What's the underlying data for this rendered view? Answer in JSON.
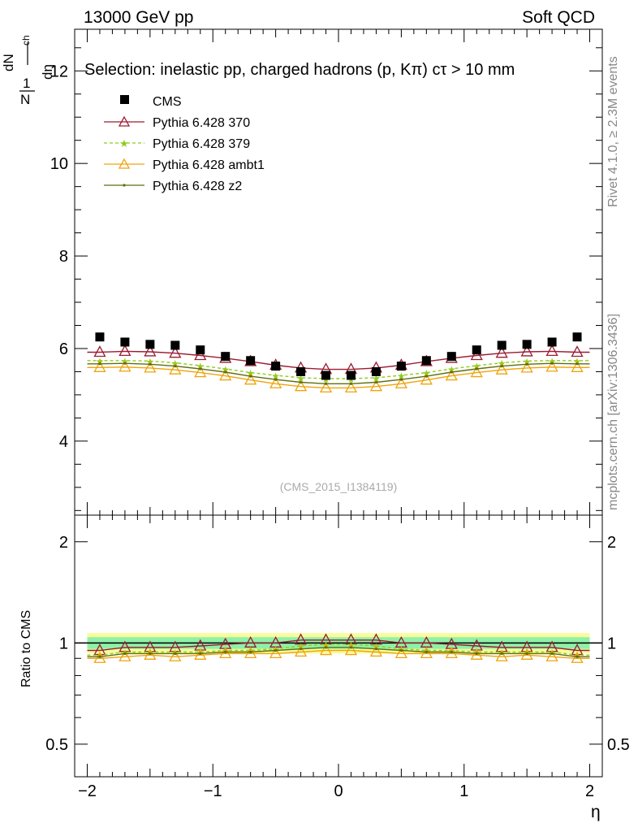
{
  "header": {
    "left_label": "13000 GeV pp",
    "right_label": "Soft QCD",
    "side_top": "Rivet 4.1.0, ≥ 2.3M events",
    "side_bottom": "mcplots.cern.ch [arXiv:1306.3436]"
  },
  "chart_data": [
    {
      "type": "scatter",
      "panel": "main",
      "title": "Selection: inelastic pp, charged hadrons (p, Kπ) cτ > 10 mm",
      "ylabel": "1/N dN_ch/dη",
      "ylabel_parts": {
        "one": "1",
        "N": "N",
        "dN": "dN",
        "ch": "ch",
        "deta": "dη"
      },
      "watermark": "(CMS_2015_I1384119)",
      "xlim": [
        -2.1,
        2.1
      ],
      "ylim": [
        2.4,
        12.9
      ],
      "yticks": [
        "4",
        "6",
        "8",
        "10",
        "12"
      ],
      "x": [
        -1.9,
        -1.7,
        -1.5,
        -1.3,
        -1.1,
        -0.9,
        -0.7,
        -0.5,
        -0.3,
        -0.1,
        0.1,
        0.3,
        0.5,
        0.7,
        0.9,
        1.1,
        1.3,
        1.5,
        1.7,
        1.9
      ],
      "series": [
        {
          "name": "CMS",
          "color": "#000000",
          "values": [
            6.25,
            6.14,
            6.09,
            6.07,
            5.97,
            5.83,
            5.74,
            5.62,
            5.5,
            5.42,
            5.42,
            5.5,
            5.62,
            5.74,
            5.83,
            5.97,
            6.07,
            6.09,
            6.14,
            6.25
          ]
        },
        {
          "name": "Pythia 6.428 370",
          "color": "#9b1b30",
          "values": [
            5.92,
            5.94,
            5.93,
            5.9,
            5.85,
            5.79,
            5.72,
            5.64,
            5.58,
            5.55,
            5.55,
            5.58,
            5.64,
            5.72,
            5.79,
            5.85,
            5.9,
            5.93,
            5.94,
            5.92
          ]
        },
        {
          "name": "Pythia 6.428 379",
          "color": "#8fcc1c",
          "values": [
            5.74,
            5.74,
            5.73,
            5.69,
            5.63,
            5.56,
            5.48,
            5.42,
            5.37,
            5.35,
            5.35,
            5.37,
            5.42,
            5.48,
            5.56,
            5.63,
            5.69,
            5.73,
            5.74,
            5.74
          ]
        },
        {
          "name": "Pythia 6.428 ambt1",
          "color": "#f0a30a",
          "values": [
            5.59,
            5.6,
            5.58,
            5.54,
            5.48,
            5.41,
            5.32,
            5.24,
            5.18,
            5.15,
            5.15,
            5.18,
            5.24,
            5.32,
            5.41,
            5.48,
            5.54,
            5.58,
            5.6,
            5.59
          ]
        },
        {
          "name": "Pythia 6.428 z2",
          "color": "#5f6e12",
          "values": [
            5.67,
            5.68,
            5.66,
            5.62,
            5.56,
            5.49,
            5.4,
            5.33,
            5.27,
            5.24,
            5.24,
            5.27,
            5.33,
            5.4,
            5.49,
            5.56,
            5.62,
            5.66,
            5.68,
            5.67
          ]
        }
      ]
    },
    {
      "type": "line",
      "panel": "ratio",
      "ylabel": "Ratio to CMS",
      "xlabel": "η",
      "xlim": [
        -2.1,
        2.1
      ],
      "ylim": [
        0.4,
        2.4
      ],
      "xticks": [
        "−2",
        "−1",
        "0",
        "1",
        "2"
      ],
      "yticks": [
        "0.5",
        "1",
        "2"
      ],
      "band_inner": 0.04,
      "band_outer": 0.07,
      "series": [
        {
          "name": "Pythia 6.428 370",
          "values": [
            0.95,
            0.97,
            0.97,
            0.97,
            0.98,
            0.99,
            1.0,
            1.0,
            1.02,
            1.02,
            1.02,
            1.02,
            1.0,
            1.0,
            0.99,
            0.98,
            0.97,
            0.97,
            0.97,
            0.95
          ]
        },
        {
          "name": "Pythia 6.428 379",
          "values": [
            0.92,
            0.94,
            0.94,
            0.94,
            0.94,
            0.95,
            0.95,
            0.96,
            0.98,
            0.99,
            0.99,
            0.98,
            0.96,
            0.95,
            0.95,
            0.94,
            0.94,
            0.94,
            0.94,
            0.92
          ]
        },
        {
          "name": "Pythia 6.428 ambt1",
          "values": [
            0.9,
            0.91,
            0.92,
            0.91,
            0.92,
            0.93,
            0.93,
            0.93,
            0.94,
            0.95,
            0.95,
            0.94,
            0.93,
            0.93,
            0.93,
            0.92,
            0.91,
            0.92,
            0.91,
            0.9
          ]
        },
        {
          "name": "Pythia 6.428 z2",
          "values": [
            0.91,
            0.93,
            0.93,
            0.93,
            0.93,
            0.94,
            0.94,
            0.95,
            0.96,
            0.97,
            0.97,
            0.96,
            0.95,
            0.94,
            0.94,
            0.93,
            0.93,
            0.93,
            0.93,
            0.91
          ]
        }
      ]
    }
  ]
}
